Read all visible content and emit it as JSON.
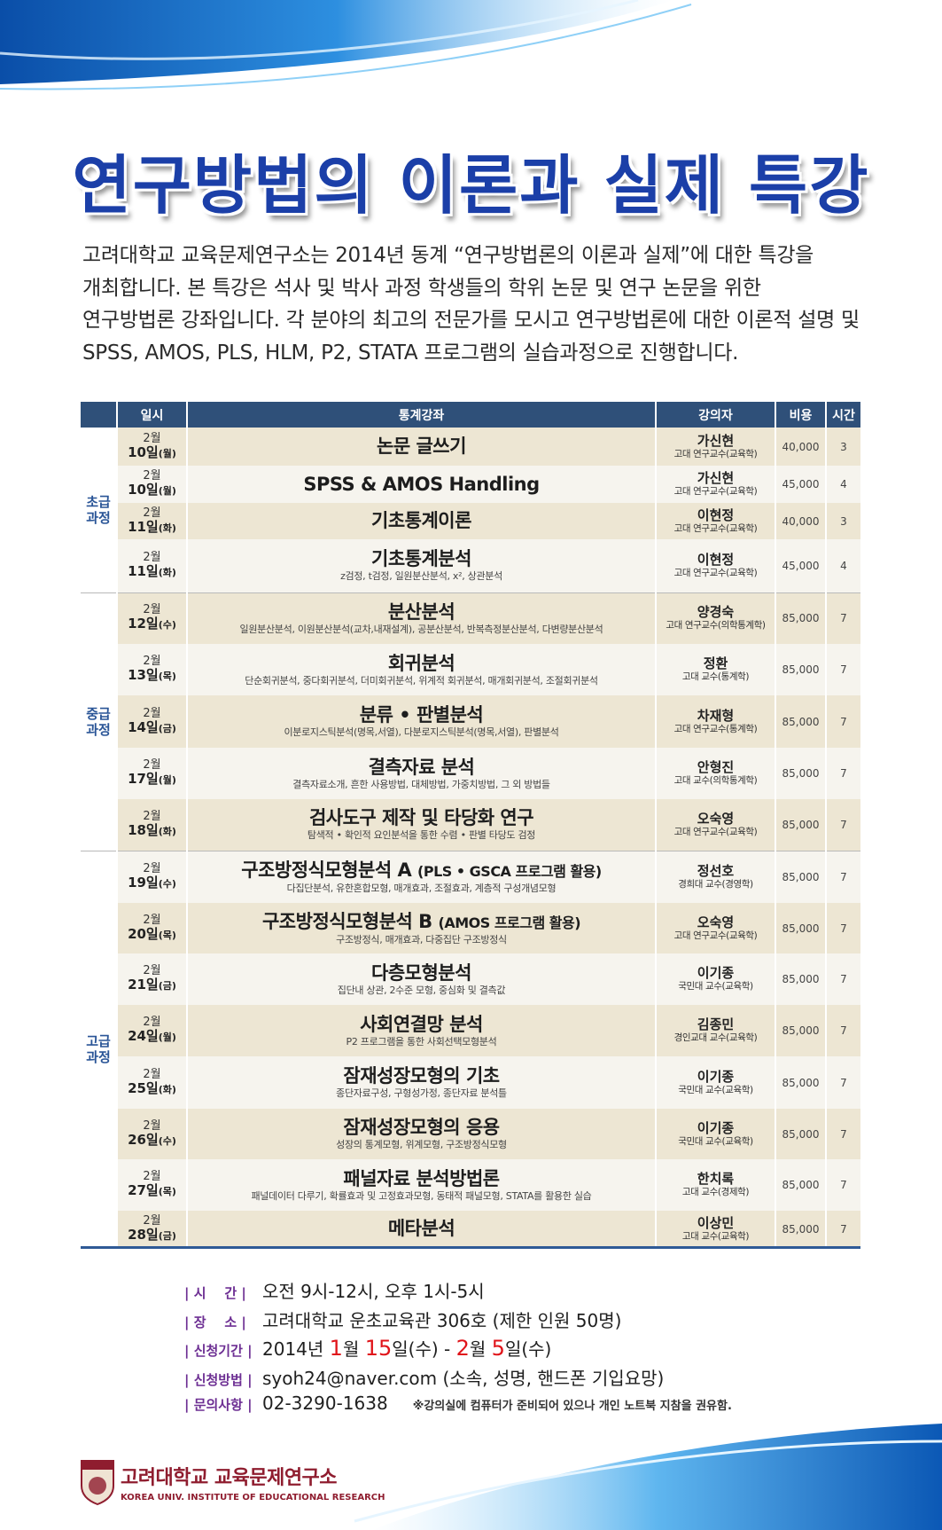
{
  "title": "연구방법의 이론과 실제 특강",
  "intro": [
    "고려대학교 교육문제연구소는 2014년 동계 “연구방법론의 이론과 실제”에 대한 특강을",
    "개최합니다. 본 특강은 석사 및 박사 과정 학생들의 학위 논문 및 연구 논문을 위한",
    "연구방법론 강좌입니다. 각 분야의 최고의 전문가를 모시고 연구방법론에 대한 이론적 설명 및",
    "SPSS, AMOS, PLS, HLM, P2, STATA 프로그램의 실습과정으로 진행합니다."
  ],
  "table": {
    "headers": [
      "",
      "일시",
      "통계강좌",
      "강의자",
      "비용",
      "시간"
    ],
    "groups": [
      {
        "label": "초급\n과정",
        "rows": [
          {
            "month": "2월",
            "day": "10일",
            "dow": "(월)",
            "course": "논문 글쓰기",
            "sub": "",
            "lecturer": "가신현",
            "aff": "고대 연구교수(교육학)",
            "fee": "40,000",
            "hours": "3"
          },
          {
            "month": "2월",
            "day": "10일",
            "dow": "(월)",
            "course": "SPSS & AMOS Handling",
            "sub": "",
            "lecturer": "가신현",
            "aff": "고대 연구교수(교육학)",
            "fee": "45,000",
            "hours": "4"
          },
          {
            "month": "2월",
            "day": "11일",
            "dow": "(화)",
            "course": "기초통계이론",
            "sub": "",
            "lecturer": "이현정",
            "aff": "고대 연구교수(교육학)",
            "fee": "40,000",
            "hours": "3"
          },
          {
            "month": "2월",
            "day": "11일",
            "dow": "(화)",
            "course": "기초통계분석",
            "sub": "z검정, t검정, 일원분산분석, x², 상관분석",
            "lecturer": "이현정",
            "aff": "고대 연구교수(교육학)",
            "fee": "45,000",
            "hours": "4"
          }
        ]
      },
      {
        "label": "중급\n과정",
        "rows": [
          {
            "month": "2월",
            "day": "12일",
            "dow": "(수)",
            "course": "분산분석",
            "sub": "일원분산분석, 이원분산분석(교차,내재설계), 공분산분석, 반복측정분산분석, 다변량분산분석",
            "lecturer": "양경숙",
            "aff": "고대 연구교수(의학통계학)",
            "fee": "85,000",
            "hours": "7"
          },
          {
            "month": "2월",
            "day": "13일",
            "dow": "(목)",
            "course": "회귀분석",
            "sub": "단순회귀분석, 중다회귀분석, 더미회귀분석, 위계적 회귀분석, 매개회귀분석, 조절회귀분석",
            "lecturer": "정환",
            "aff": "고대 교수(통계학)",
            "fee": "85,000",
            "hours": "7"
          },
          {
            "month": "2월",
            "day": "14일",
            "dow": "(금)",
            "course": "분류 • 판별분석",
            "sub": "이분로지스틱분석(명목,서열), 다분로지스틱분석(명목,서열), 판별분석",
            "lecturer": "차재형",
            "aff": "고대 연구교수(통계학)",
            "fee": "85,000",
            "hours": "7"
          },
          {
            "month": "2월",
            "day": "17일",
            "dow": "(월)",
            "course": "결측자료 분석",
            "sub": "결측자료소개, 흔한 사용방법, 대체방법, 가중치방법, 그 외 방법들",
            "lecturer": "안형진",
            "aff": "고대 교수(의학통계학)",
            "fee": "85,000",
            "hours": "7"
          },
          {
            "month": "2월",
            "day": "18일",
            "dow": "(화)",
            "course": "검사도구 제작 및 타당화 연구",
            "sub": "탐색적 • 확인적 요인분석을 통한 수렴 • 판별 타당도 검정",
            "lecturer": "오숙영",
            "aff": "고대 연구교수(교육학)",
            "fee": "85,000",
            "hours": "7"
          }
        ]
      },
      {
        "label": "고급\n과정",
        "rows": [
          {
            "month": "2월",
            "day": "19일",
            "dow": "(수)",
            "course": "구조방정식모형분석 A",
            "course_note": "(PLS • GSCA 프로그램 활용)",
            "sub": "다집단분석, 유한혼합모형, 매개효과, 조절효과, 계층적 구성개념모형",
            "lecturer": "정선호",
            "aff": "경희대 교수(경영학)",
            "fee": "85,000",
            "hours": "7"
          },
          {
            "month": "2월",
            "day": "20일",
            "dow": "(목)",
            "course": "구조방정식모형분석 B",
            "course_note": "(AMOS 프로그램 활용)",
            "sub": "구조방정식, 매개효과, 다중집단 구조방정식",
            "lecturer": "오숙영",
            "aff": "고대 연구교수(교육학)",
            "fee": "85,000",
            "hours": "7"
          },
          {
            "month": "2월",
            "day": "21일",
            "dow": "(금)",
            "course": "다층모형분석",
            "sub": "집단내 상관, 2수준 모형, 중심화 및 결측값",
            "lecturer": "이기종",
            "aff": "국민대 교수(교육학)",
            "fee": "85,000",
            "hours": "7"
          },
          {
            "month": "2월",
            "day": "24일",
            "dow": "(월)",
            "course": "사회연결망 분석",
            "sub": "P2 프로그램을 통한 사회선택모형분석",
            "lecturer": "김종민",
            "aff": "경인교대 교수(교육학)",
            "fee": "85,000",
            "hours": "7"
          },
          {
            "month": "2월",
            "day": "25일",
            "dow": "(화)",
            "course": "잠재성장모형의 기초",
            "sub": "종단자료구성, 구형성가정, 종단자료 분석틀",
            "lecturer": "이기종",
            "aff": "국민대 교수(교육학)",
            "fee": "85,000",
            "hours": "7"
          },
          {
            "month": "2월",
            "day": "26일",
            "dow": "(수)",
            "course": "잠재성장모형의 응용",
            "sub": "성장의 통계모형, 위계모형, 구조방정식모형",
            "lecturer": "이기종",
            "aff": "국민대 교수(교육학)",
            "fee": "85,000",
            "hours": "7"
          },
          {
            "month": "2월",
            "day": "27일",
            "dow": "(목)",
            "course": "패널자료 분석방법론",
            "sub": "패널데이터 다루기, 확률효과 및 고정효과모형, 동태적 패널모형, STATA를 활용한 실습",
            "lecturer": "한치록",
            "aff": "고대 교수(경제학)",
            "fee": "85,000",
            "hours": "7"
          },
          {
            "month": "2월",
            "day": "28일",
            "dow": "(금)",
            "course": "메타분석",
            "sub": "",
            "lecturer": "이상민",
            "aff": "고대 교수(교육학)",
            "fee": "85,000",
            "hours": "7"
          }
        ]
      }
    ]
  },
  "info": {
    "time_label": "| 시    간 |",
    "time": "오전 9시-12시, 오후 1시-5시",
    "place_label": "| 장    소 |",
    "place": "고려대학교 운초교육관 306호 (제한 인원 50명)",
    "period_label": "| 신청기간 |",
    "period": {
      "year": "2014년",
      "m1": "1",
      "m1u": "월",
      "d1": "15",
      "d1u": "일(수) - ",
      "m2": "2",
      "m2u": "월",
      "d2": "5",
      "d2u": "일(수)"
    },
    "method_label": "| 신청방법 |",
    "method": "syoh24@naver.com (소속, 성명, 핸드폰 기입요망)",
    "contact_label": "| 문의사항 |",
    "contact": "02-3290-1638",
    "note": "※강의실에 컴퓨터가 준비되어 있으나 개인 노트북 지참을 권유함."
  },
  "logo": {
    "name_ko": "고려대학교 교육문제연구소",
    "name_en": "KOREA UNIV. INSTITUTE OF EDUCATIONAL RESEARCH",
    "seal_text": "KOREA UNIVERSITY"
  },
  "colors": {
    "title": "#1b3fa8",
    "header": "#2f5079",
    "row_beige": "#ede6d3",
    "row_light": "#f6f4ee",
    "label": "#6d2f93",
    "highlight": "#e0141a",
    "logo": "#8f1d2f"
  }
}
